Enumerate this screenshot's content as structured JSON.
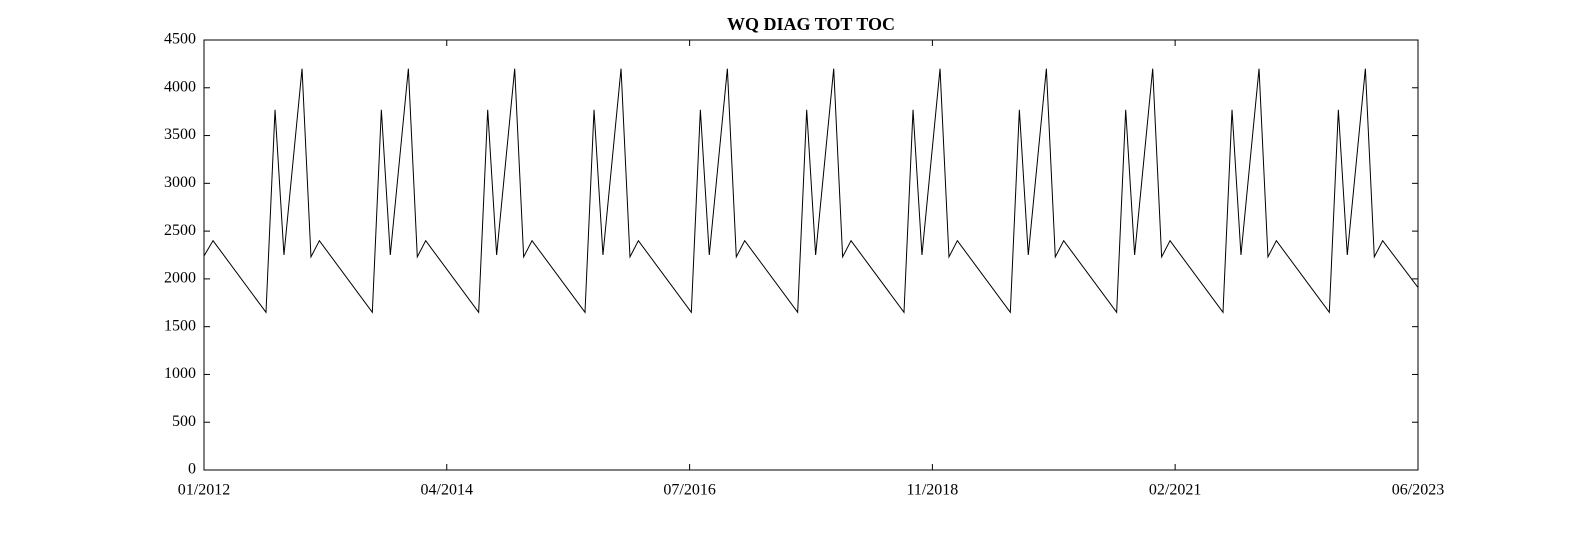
{
  "chart_data": {
    "type": "line",
    "title": "WQ DIAG TOT TOC",
    "color": "#000000",
    "grid": false,
    "x": [
      2012.0,
      2012.085,
      2012.583,
      2012.668,
      2012.752,
      2012.922,
      2013.006,
      2013.085,
      2013.583,
      2013.668,
      2013.752,
      2013.922,
      2014.006,
      2014.085,
      2014.583,
      2014.668,
      2014.752,
      2014.922,
      2015.006,
      2015.085,
      2015.583,
      2015.668,
      2015.752,
      2015.922,
      2016.006,
      2016.085,
      2016.583,
      2016.668,
      2016.752,
      2016.922,
      2017.006,
      2017.085,
      2017.583,
      2017.668,
      2017.752,
      2017.922,
      2018.006,
      2018.085,
      2018.583,
      2018.668,
      2018.752,
      2018.922,
      2019.006,
      2019.085,
      2019.583,
      2019.668,
      2019.752,
      2019.922,
      2020.006,
      2020.085,
      2020.583,
      2020.668,
      2020.752,
      2020.922,
      2021.006,
      2021.085,
      2021.583,
      2021.668,
      2021.752,
      2021.922,
      2022.006,
      2022.085,
      2022.583,
      2022.668,
      2022.752,
      2022.922,
      2023.006,
      2023.085,
      2023.417
    ],
    "values": [
      2240,
      2400,
      1650,
      3770,
      2250,
      4200,
      2230,
      2400,
      1650,
      3770,
      2250,
      4200,
      2230,
      2400,
      1650,
      3770,
      2250,
      4200,
      2230,
      2400,
      1650,
      3770,
      2250,
      4200,
      2230,
      2400,
      1650,
      3770,
      2250,
      4200,
      2230,
      2400,
      1650,
      3770,
      2250,
      4200,
      2230,
      2400,
      1650,
      3770,
      2250,
      4200,
      2230,
      2400,
      1650,
      3770,
      2250,
      4200,
      2230,
      2400,
      1650,
      3770,
      2250,
      4200,
      2230,
      2400,
      1650,
      3770,
      2250,
      4200,
      2230,
      2400,
      1650,
      3770,
      2250,
      4200,
      2230,
      2400,
      1910
    ],
    "xlim": [
      2012.0,
      2023.417
    ],
    "xticks": [
      {
        "value": 2012.0,
        "label": "01/2012"
      },
      {
        "value": 2014.283,
        "label": "04/2014"
      },
      {
        "value": 2016.567,
        "label": "07/2016"
      },
      {
        "value": 2018.85,
        "label": "11/2018"
      },
      {
        "value": 2021.133,
        "label": "02/2021"
      },
      {
        "value": 2023.417,
        "label": "06/2023"
      }
    ],
    "ylim": [
      0,
      4500
    ],
    "yticks": [
      0,
      500,
      1000,
      1500,
      2000,
      2500,
      3000,
      3500,
      4000,
      4500
    ]
  }
}
